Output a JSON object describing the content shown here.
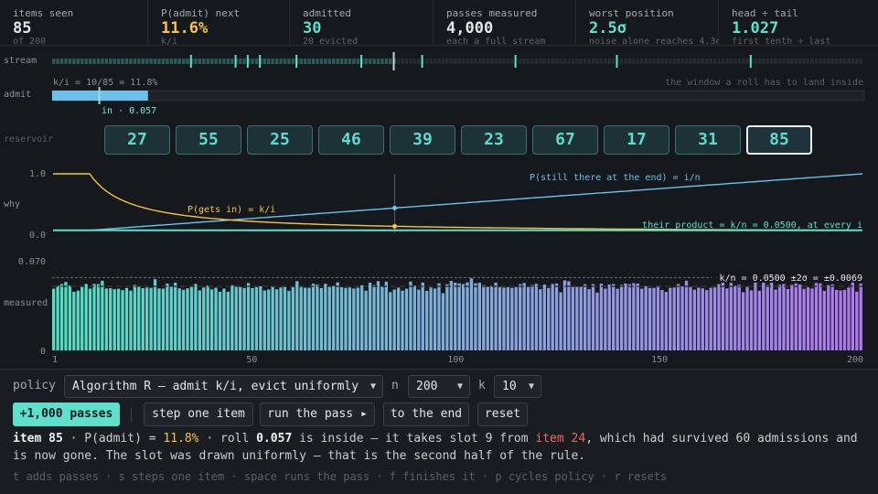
{
  "stats": [
    {
      "label": "items seen",
      "value": "85",
      "sub": "of 200",
      "tone": ""
    },
    {
      "label": "P(admit) next",
      "value": "11.6%",
      "sub": "k/i",
      "tone": "amber"
    },
    {
      "label": "admitted",
      "value": "30",
      "sub": "20 evicted",
      "tone": "teal"
    },
    {
      "label": "passes measured",
      "value": "4,000",
      "sub": "each a full stream",
      "tone": ""
    },
    {
      "label": "worst position",
      "value": "2.5σ",
      "sub": "noise alone reaches 4.3σ",
      "tone": "teal"
    },
    {
      "label": "head ÷ tail",
      "value": "1.027",
      "sub": "first tenth ÷ last",
      "tone": "teal"
    }
  ],
  "lanes": {
    "stream": "stream",
    "admit": "admit",
    "reservoir": "reservoir",
    "why": "why",
    "measured": "measured"
  },
  "stream": {
    "total": 200,
    "seen": 85,
    "admitted_marks": [
      34,
      45,
      48,
      51,
      60,
      76,
      91,
      114,
      139,
      172
    ]
  },
  "admit": {
    "left_label": "k/i = 10/85 = 11.8%",
    "right_label": "the window a roll has to land inside",
    "fraction": 0.118,
    "roll": 0.057,
    "roll_label": "in · 0.057"
  },
  "reservoir": {
    "slots": [
      "27",
      "55",
      "25",
      "46",
      "39",
      "23",
      "67",
      "17",
      "31",
      "85"
    ],
    "new_slot": 9
  },
  "why": {
    "y_top": "1.0",
    "y_bottom": "0.0",
    "k": 10,
    "n": 200,
    "current": 85,
    "label_in": "P(gets in) = k/i",
    "label_still": "P(still there at the end) = i/n",
    "label_product": "their product = k/n = 0.0500, at every i",
    "colors": {
      "admit": "#f5c542",
      "still": "#6ec1ea",
      "product": "#5fe0cc"
    }
  },
  "measured": {
    "y_top": "0.070",
    "y_bottom": "0",
    "ymax": 0.07,
    "expected": 0.05,
    "band": 0.0069,
    "legend": "k/n = 0.0500  ±2σ = ±0.0069",
    "x_ticks": [
      "1",
      "50",
      "100",
      "150",
      "200"
    ],
    "seed": 17
  },
  "controls": {
    "policy_label": "policy",
    "policy_value": "Algorithm R — admit k/i, evict uniformly",
    "n_label": "n",
    "n_value": "200",
    "k_label": "k",
    "k_value": "10",
    "buttons": {
      "add_passes": "+1,000 passes",
      "step": "step one item",
      "run": "run the pass ▸",
      "end": "to the end",
      "reset": "reset"
    }
  },
  "log": {
    "item": "item 85",
    "t1": " · P(admit) = ",
    "p": "11.8%",
    "t2": " · roll ",
    "roll": "0.057",
    "t3": " is inside — it takes slot 9 from ",
    "victim": "item 24",
    "t4": ", which had survived 60 admissions and is now gone. The slot was drawn uniformly — that is the second half of the rule."
  },
  "hint": "t adds passes · s steps one item · space runs the pass · f finishes it · p cycles policy · r resets"
}
